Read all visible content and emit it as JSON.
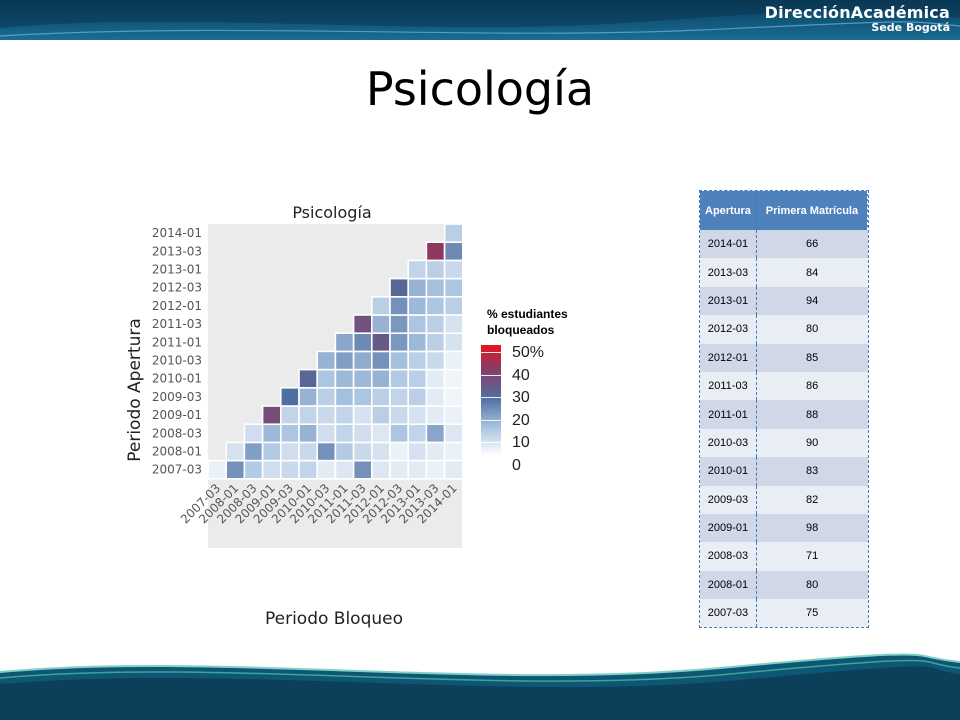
{
  "brand": {
    "line1": "DirecciónAcadémica",
    "line2": "Sede Bogotá"
  },
  "slide_title": "Psicología",
  "chart_data": {
    "type": "heatmap",
    "title": "Psicología",
    "xlabel": "Periodo Bloqueo",
    "ylabel": "Periodo Apertura",
    "x_categories": [
      "2007-03",
      "2008-01",
      "2008-03",
      "2009-01",
      "2009-03",
      "2010-01",
      "2010-03",
      "2011-01",
      "2011-03",
      "2012-01",
      "2012-03",
      "2013-01",
      "2013-03",
      "2014-01"
    ],
    "y_categories": [
      "2007-03",
      "2008-01",
      "2008-03",
      "2009-01",
      "2009-03",
      "2010-01",
      "2010-03",
      "2011-01",
      "2011-03",
      "2012-01",
      "2012-03",
      "2013-01",
      "2013-03",
      "2014-01"
    ],
    "values": [
      [
        3,
        20,
        11,
        7,
        8,
        9,
        4,
        5,
        20,
        5,
        4,
        4,
        3,
        4
      ],
      [
        null,
        6,
        18,
        11,
        7,
        8,
        20,
        11,
        8,
        6,
        3,
        6,
        4,
        3
      ],
      [
        null,
        null,
        7,
        14,
        12,
        15,
        7,
        9,
        7,
        5,
        12,
        9,
        17,
        5
      ],
      [
        null,
        null,
        null,
        33,
        9,
        9,
        8,
        9,
        6,
        10,
        8,
        6,
        4,
        3
      ],
      [
        null,
        null,
        null,
        null,
        25,
        15,
        10,
        13,
        12,
        10,
        9,
        10,
        4,
        2
      ],
      [
        null,
        null,
        null,
        null,
        null,
        27,
        12,
        14,
        14,
        15,
        11,
        10,
        4,
        2
      ],
      [
        null,
        null,
        null,
        null,
        null,
        null,
        15,
        18,
        16,
        20,
        13,
        10,
        8,
        3
      ],
      [
        null,
        null,
        null,
        null,
        null,
        null,
        null,
        17,
        21,
        30,
        19,
        14,
        10,
        6
      ],
      [
        null,
        null,
        null,
        null,
        null,
        null,
        null,
        null,
        32,
        15,
        19,
        12,
        10,
        6
      ],
      [
        null,
        null,
        null,
        null,
        null,
        null,
        null,
        null,
        null,
        10,
        20,
        14,
        12,
        10
      ],
      [
        null,
        null,
        null,
        null,
        null,
        null,
        null,
        null,
        null,
        null,
        27,
        15,
        13,
        12
      ],
      [
        null,
        null,
        null,
        null,
        null,
        null,
        null,
        null,
        null,
        null,
        null,
        9,
        10,
        8
      ],
      [
        null,
        null,
        null,
        null,
        null,
        null,
        null,
        null,
        null,
        null,
        null,
        null,
        38,
        21
      ],
      [
        null,
        null,
        null,
        null,
        null,
        null,
        null,
        null,
        null,
        null,
        null,
        null,
        null,
        10
      ]
    ],
    "legend": {
      "title": [
        "% estudiantes",
        "bloqueados"
      ],
      "labels": [
        "50%",
        "40",
        "30",
        "20",
        "10",
        "0"
      ],
      "stops": [
        "#ffffff",
        "#a9c3e0",
        "#4f6fa0",
        "#8b3a62",
        "#e8141f"
      ]
    }
  },
  "table": {
    "headers": [
      "Apertura",
      "Primera Matrícula"
    ],
    "rows": [
      [
        "2014-01",
        "66"
      ],
      [
        "2013-03",
        "84"
      ],
      [
        "2013-01",
        "94"
      ],
      [
        "2012-03",
        "80"
      ],
      [
        "2012-01",
        "85"
      ],
      [
        "2011-03",
        "86"
      ],
      [
        "2011-01",
        "88"
      ],
      [
        "2010-03",
        "90"
      ],
      [
        "2010-01",
        "83"
      ],
      [
        "2009-03",
        "82"
      ],
      [
        "2009-01",
        "98"
      ],
      [
        "2008-03",
        "71"
      ],
      [
        "2008-01",
        "80"
      ],
      [
        "2007-03",
        "75"
      ]
    ]
  }
}
